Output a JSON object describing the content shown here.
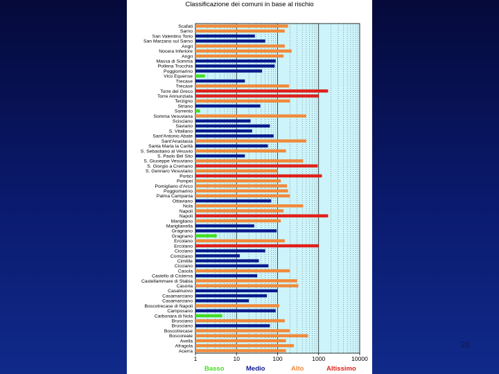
{
  "slide": {
    "number": "26"
  },
  "colors": {
    "background": "#0a1a6e",
    "plot_bg": "#ccf4fa",
    "grid": "#000000",
    "Basso": "#44dd22",
    "Medio": "#0a1a8c",
    "Alto": "#f08a3c",
    "Altissimo": "#e0201a"
  },
  "chart_data": {
    "type": "bar",
    "orientation": "horizontal",
    "title": "Classificazione dei comuni in base al rischio",
    "xscale": "log",
    "xlim": [
      1,
      10000
    ],
    "xticks": [
      "1",
      "10",
      "100",
      "1000",
      "10000"
    ],
    "legend": [
      "Basso",
      "Medio",
      "Alto",
      "Altissimo"
    ],
    "legend_position": "bottom",
    "bars": [
      {
        "name": "Scafati",
        "value": 180,
        "class": "Alto"
      },
      {
        "name": "Sarno",
        "value": 150,
        "class": "Alto"
      },
      {
        "name": "San Valentino Torio",
        "value": 28,
        "class": "Medio"
      },
      {
        "name": "San Marzano sul Sarno",
        "value": 50,
        "class": "Medio"
      },
      {
        "name": "Angri",
        "value": 150,
        "class": "Alto"
      },
      {
        "name": "Nocera Inferiore",
        "value": 220,
        "class": "Alto"
      },
      {
        "name": "Angri",
        "value": 140,
        "class": "Alto"
      },
      {
        "name": "Massa di Somma",
        "value": 90,
        "class": "Medio"
      },
      {
        "name": "Pollena Trocchia",
        "value": 85,
        "class": "Medio"
      },
      {
        "name": "Poggiomarino",
        "value": 42,
        "class": "Medio"
      },
      {
        "name": "Vico Equense",
        "value": 1.7,
        "class": "Basso"
      },
      {
        "name": "Trecase",
        "value": 16,
        "class": "Medio"
      },
      {
        "name": "Trecase",
        "value": 190,
        "class": "Alto"
      },
      {
        "name": "Torre del Greco",
        "value": 1700,
        "class": "Altissimo"
      },
      {
        "name": "Torre Annunziata",
        "value": 1000,
        "class": "Altissimo"
      },
      {
        "name": "Terzigno",
        "value": 200,
        "class": "Alto"
      },
      {
        "name": "Striano",
        "value": 38,
        "class": "Medio"
      },
      {
        "name": "Sorrento",
        "value": 1.3,
        "class": "Basso"
      },
      {
        "name": "Somma Vesuviana",
        "value": 500,
        "class": "Alto"
      },
      {
        "name": "Scisciano",
        "value": 22,
        "class": "Medio"
      },
      {
        "name": "Saviano",
        "value": 65,
        "class": "Medio"
      },
      {
        "name": "S. Vitaliano",
        "value": 24,
        "class": "Medio"
      },
      {
        "name": "Sant'Antonio Abate",
        "value": 80,
        "class": "Medio"
      },
      {
        "name": "Sant'Anastasia",
        "value": 500,
        "class": "Alto"
      },
      {
        "name": "Santa Maria la Carità",
        "value": 58,
        "class": "Medio"
      },
      {
        "name": "S. Sebastiano al Vesuvio",
        "value": 160,
        "class": "Alto"
      },
      {
        "name": "S. Paolo Bel Sito",
        "value": 16,
        "class": "Medio"
      },
      {
        "name": "S. Giuseppe Vesuviano",
        "value": 420,
        "class": "Alto"
      },
      {
        "name": "S. Giorgio a Cremano",
        "value": 950,
        "class": "Altissimo"
      },
      {
        "name": "S. Gennaro Vesuviano",
        "value": 100,
        "class": "Alto"
      },
      {
        "name": "Portici",
        "value": 1200,
        "class": "Altissimo"
      },
      {
        "name": "Pompei",
        "value": 120,
        "class": "Alto"
      },
      {
        "name": "Pomigliano d'Arco",
        "value": 170,
        "class": "Alto"
      },
      {
        "name": "Poggiomarino",
        "value": 180,
        "class": "Alto"
      },
      {
        "name": "Palma Campania",
        "value": 200,
        "class": "Alto"
      },
      {
        "name": "Ottaviano",
        "value": 70,
        "class": "Medio"
      },
      {
        "name": "Nola",
        "value": 420,
        "class": "Alto"
      },
      {
        "name": "Napoli",
        "value": 140,
        "class": "Alto"
      },
      {
        "name": "Napoli",
        "value": 1700,
        "class": "Altissimo"
      },
      {
        "name": "Marigliano",
        "value": 120,
        "class": "Alto"
      },
      {
        "name": "Mariglianella",
        "value": 27,
        "class": "Medio"
      },
      {
        "name": "Gragnano",
        "value": 95,
        "class": "Medio"
      },
      {
        "name": "Gragnano",
        "value": 3.3,
        "class": "Basso"
      },
      {
        "name": "Ercolano",
        "value": 150,
        "class": "Alto"
      },
      {
        "name": "Ercolano",
        "value": 1000,
        "class": "Altissimo"
      },
      {
        "name": "Cicciano",
        "value": 50,
        "class": "Medio"
      },
      {
        "name": "Comiziano",
        "value": 12,
        "class": "Medio"
      },
      {
        "name": "Cimitile",
        "value": 35,
        "class": "Medio"
      },
      {
        "name": "Cicciano",
        "value": 60,
        "class": "Medio"
      },
      {
        "name": "Casola",
        "value": 200,
        "class": "Alto"
      },
      {
        "name": "Castello di Cisterna",
        "value": 32,
        "class": "Medio"
      },
      {
        "name": "Castellammare di Stabia",
        "value": 300,
        "class": "Alto"
      },
      {
        "name": "Casoria",
        "value": 320,
        "class": "Alto"
      },
      {
        "name": "Casalnuovo",
        "value": 100,
        "class": "Medio"
      },
      {
        "name": "Casamarciano",
        "value": 55,
        "class": "Medio"
      },
      {
        "name": "Casamarciano",
        "value": 20,
        "class": "Medio"
      },
      {
        "name": "Boscotrecase di Napoli",
        "value": 110,
        "class": "Alto"
      },
      {
        "name": "Camposano",
        "value": 90,
        "class": "Medio"
      },
      {
        "name": "Carbonara di Nola",
        "value": 4.5,
        "class": "Basso"
      },
      {
        "name": "Brusciano",
        "value": 150,
        "class": "Alto"
      },
      {
        "name": "Brusciano",
        "value": 65,
        "class": "Medio"
      },
      {
        "name": "Boscotrecase",
        "value": 200,
        "class": "Alto"
      },
      {
        "name": "Boscoreale",
        "value": 550,
        "class": "Alto"
      },
      {
        "name": "Avella",
        "value": 160,
        "class": "Alto"
      },
      {
        "name": "Afragola",
        "value": 250,
        "class": "Alto"
      },
      {
        "name": "Acerra",
        "value": 160,
        "class": "Alto"
      }
    ]
  }
}
